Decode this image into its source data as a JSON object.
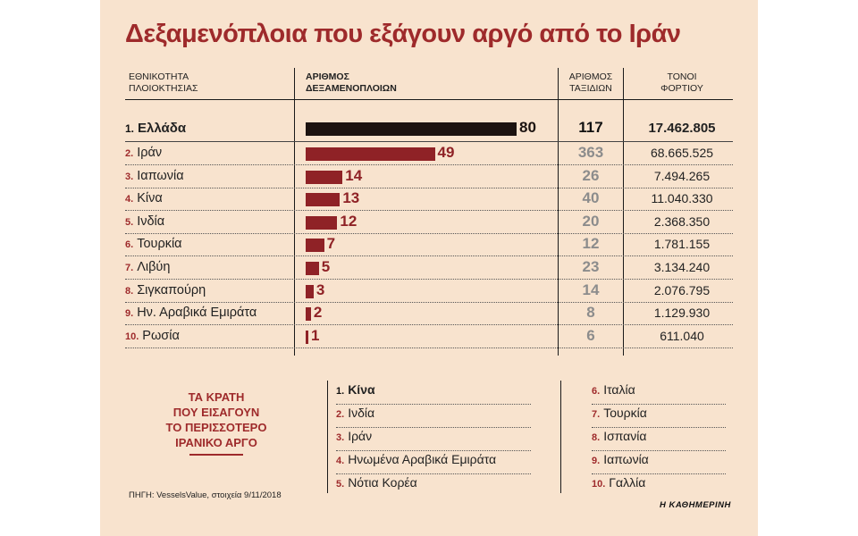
{
  "title": "Δεξαμενόπλοια που εξάγουν αργό από το Ιράν",
  "headers": {
    "nationality": [
      "ΕΘΝΙΚΟΤΗΤΑ",
      "ΠΛΟΙΟΚΤΗΣΙΑΣ"
    ],
    "tankers": [
      "ΑΡΙΘΜΟΣ",
      "ΔΕΞΑΜΕΝΟΠΛΟΙΩΝ"
    ],
    "trips": [
      "ΑΡΙΘΜΟΣ",
      "ΤΑΞΙΔΙΩΝ"
    ],
    "tons": [
      "ΤΟΝΟΙ",
      "ΦΟΡΤΙΟΥ"
    ]
  },
  "colors": {
    "accent": "#9e2a2b",
    "bar": "#8f2226",
    "bar_first": "#1c1310",
    "background": "#f8e3ce"
  },
  "chart_data": {
    "type": "bar",
    "title": "Δεξαμενόπλοια που εξάγουν αργό από το Ιράν",
    "categories": [
      "Ελλάδα",
      "Ιράν",
      "Ιαπωνία",
      "Κίνα",
      "Ινδία",
      "Τουρκία",
      "Λιβύη",
      "Σιγκαπούρη",
      "Ην. Αραβικά Εμιράτα",
      "Ρωσία"
    ],
    "ranks": [
      "1.",
      "2.",
      "3.",
      "4.",
      "5.",
      "6.",
      "7.",
      "8.",
      "9.",
      "10."
    ],
    "values": [
      80,
      49,
      14,
      13,
      12,
      7,
      5,
      3,
      2,
      1
    ],
    "trips": [
      117,
      363,
      26,
      40,
      20,
      12,
      23,
      14,
      8,
      6
    ],
    "tons": [
      "17.462.805",
      "68.665.525",
      "7.494.265",
      "11.040.330",
      "2.368.350",
      "1.781.155",
      "3.134.240",
      "2.076.795",
      "1.129.930",
      "611.040"
    ],
    "xlim": [
      0,
      80
    ]
  },
  "importers": {
    "title": [
      "ΤΑ ΚΡΑΤΗ",
      "ΠΟΥ ΕΙΣΑΓΟΥΝ",
      "ΤΟ ΠΕΡΙΣΣΟΤΕΡΟ",
      "ΙΡΑΝΙΚΟ ΑΡΓΟ"
    ],
    "left": [
      {
        "rank": "1.",
        "name": "Κίνα"
      },
      {
        "rank": "2.",
        "name": "Ινδία"
      },
      {
        "rank": "3.",
        "name": "Ιράν"
      },
      {
        "rank": "4.",
        "name": "Ηνωμένα Αραβικά Εμιράτα"
      },
      {
        "rank": "5.",
        "name": "Νότια Κορέα"
      }
    ],
    "right": [
      {
        "rank": "6.",
        "name": "Ιταλία"
      },
      {
        "rank": "7.",
        "name": "Τουρκία"
      },
      {
        "rank": "8.",
        "name": "Ισπανία"
      },
      {
        "rank": "9.",
        "name": "Ιαπωνία"
      },
      {
        "rank": "10.",
        "name": "Γαλλία"
      }
    ]
  },
  "source": "ΠΗΓΗ: VesselsValue, στοιχεία 9/11/2018",
  "brand": "Η ΚΑΘΗΜΕΡΙΝΗ"
}
